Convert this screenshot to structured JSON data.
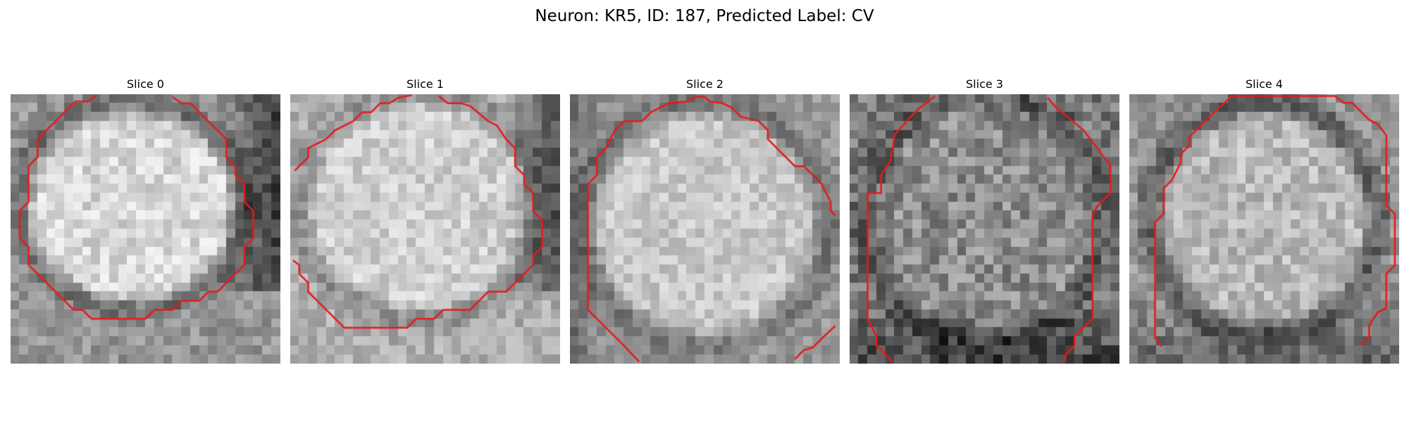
{
  "figure": {
    "title": "Neuron: KR5, ID: 187, Predicted Label: CV"
  },
  "panels": [
    {
      "title": "Slice 0"
    },
    {
      "title": "Slice 1"
    },
    {
      "title": "Slice 2"
    },
    {
      "title": "Slice 3"
    },
    {
      "title": "Slice 4"
    }
  ],
  "colors": {
    "contour": "#e8191e",
    "background": "#ffffff"
  }
}
